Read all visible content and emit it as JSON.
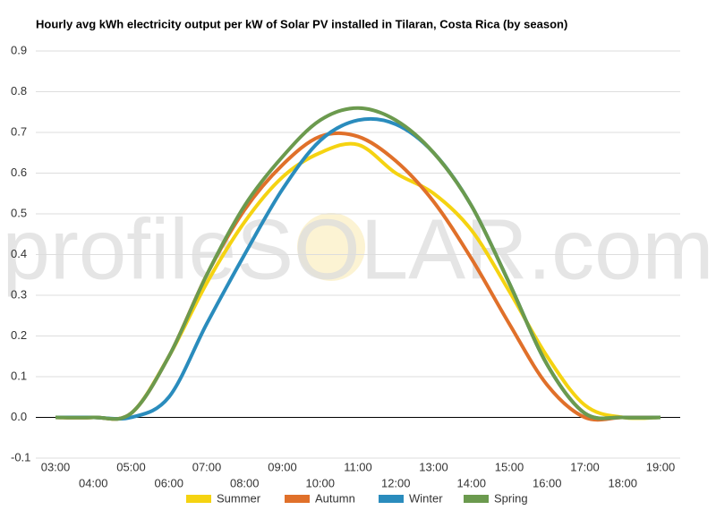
{
  "chart_data": {
    "type": "line",
    "title": "Hourly avg kWh electricity output per kW of Solar PV installed in Tilaran, Costa Rica (by season)",
    "watermark": "profileSOLAR.com",
    "categories": [
      "03:00",
      "04:00",
      "05:00",
      "06:00",
      "07:00",
      "08:00",
      "09:00",
      "10:00",
      "11:00",
      "12:00",
      "13:00",
      "14:00",
      "15:00",
      "16:00",
      "17:00",
      "18:00",
      "19:00"
    ],
    "series": [
      {
        "name": "Summer",
        "color": "#f5d311",
        "values": [
          0,
          0,
          0.01,
          0.15,
          0.33,
          0.48,
          0.59,
          0.65,
          0.67,
          0.6,
          0.55,
          0.46,
          0.31,
          0.15,
          0.03,
          0,
          0
        ]
      },
      {
        "name": "Autumn",
        "color": "#e0702a",
        "values": [
          0,
          0,
          0.01,
          0.15,
          0.35,
          0.51,
          0.62,
          0.69,
          0.69,
          0.63,
          0.53,
          0.39,
          0.23,
          0.08,
          0,
          0,
          0
        ]
      },
      {
        "name": "Winter",
        "color": "#2a8cbd",
        "values": [
          0,
          0,
          0,
          0.05,
          0.23,
          0.4,
          0.56,
          0.68,
          0.73,
          0.72,
          0.65,
          0.52,
          0.33,
          0.13,
          0.01,
          0,
          0
        ]
      },
      {
        "name": "Spring",
        "color": "#6b9a4e",
        "values": [
          0,
          0,
          0.01,
          0.15,
          0.35,
          0.52,
          0.64,
          0.73,
          0.76,
          0.73,
          0.65,
          0.52,
          0.33,
          0.13,
          0.01,
          0,
          0
        ]
      }
    ],
    "ylim": [
      -0.1,
      0.9
    ],
    "yticks": [
      -0.1,
      {
        "value": 0,
        "label": "0.0"
      },
      0.1,
      0.2,
      0.3,
      0.4,
      0.5,
      0.6,
      0.7,
      0.8,
      0.9
    ],
    "grid": true
  }
}
